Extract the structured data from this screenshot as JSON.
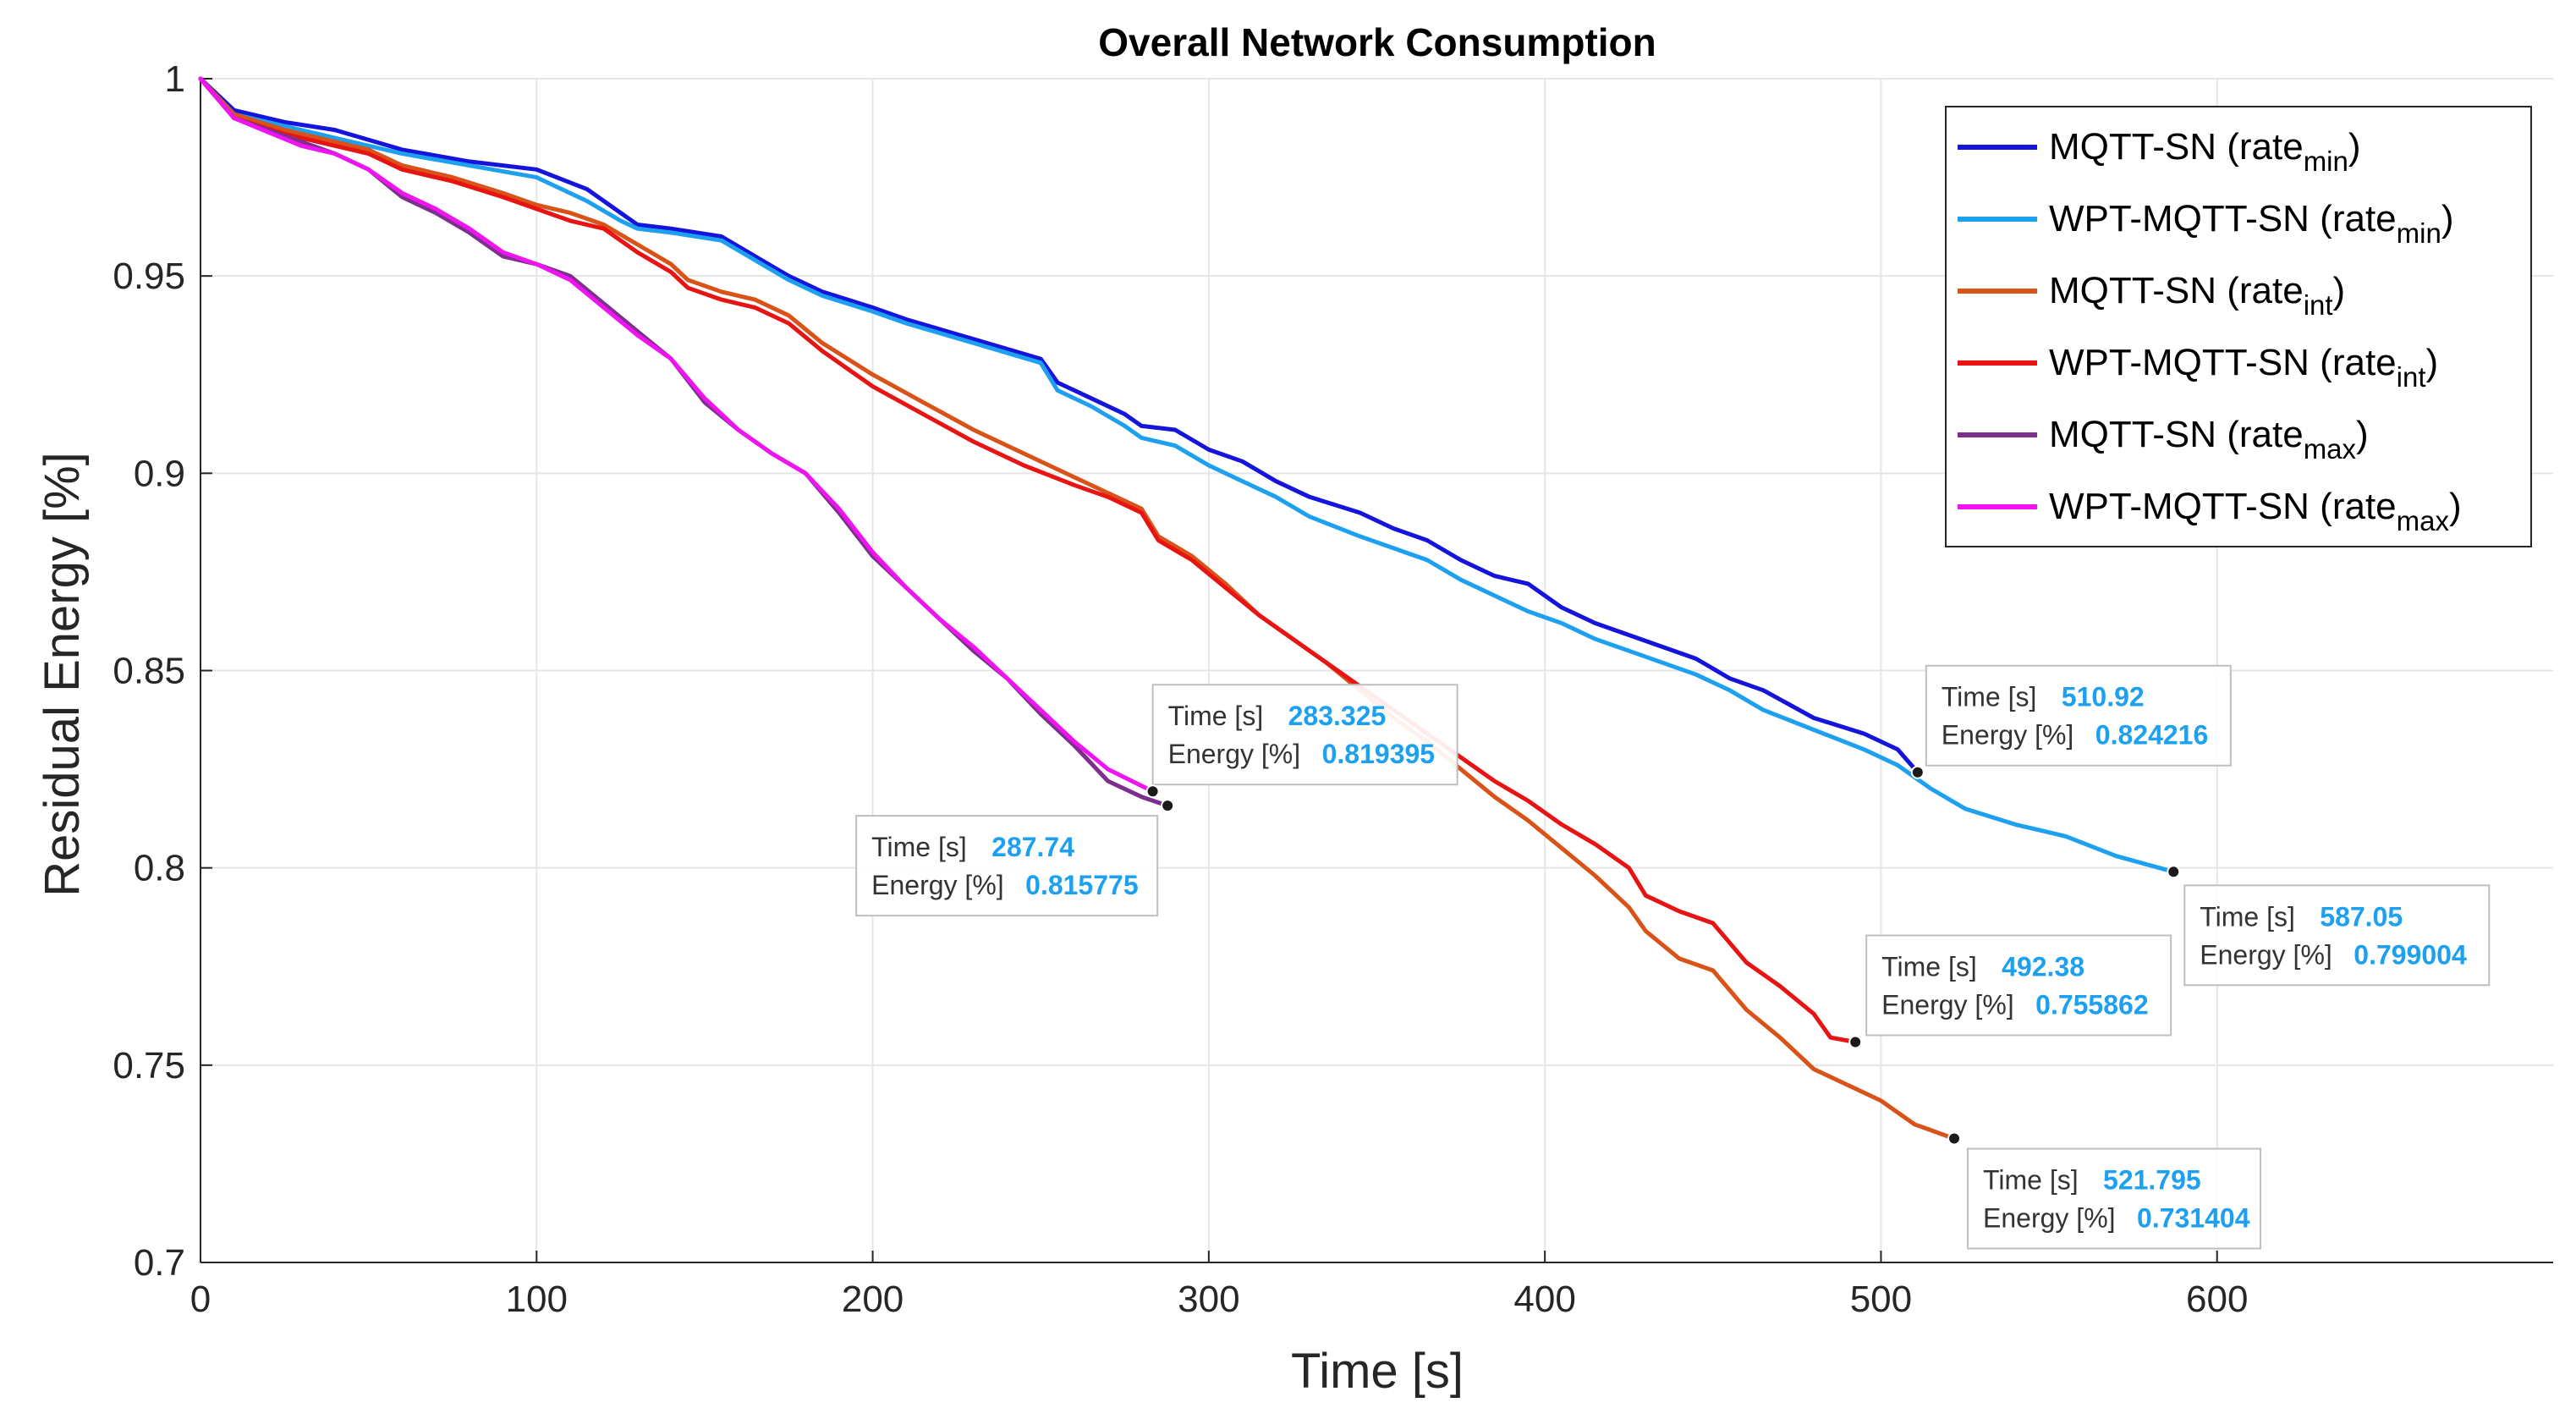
{
  "chart_data": {
    "type": "line",
    "title": "Overall Network Consumption",
    "xlabel": "Time [s]",
    "ylabel": "Residual Energy [%]",
    "xlim": [
      0,
      700
    ],
    "ylim": [
      0.7,
      1.0
    ],
    "grid": true,
    "legend_position": "top-right",
    "x_ticks": [
      "0",
      "100",
      "200",
      "300",
      "400",
      "500",
      "600"
    ],
    "y_ticks": [
      "0.7",
      "0.75",
      "0.8",
      "0.85",
      "0.9",
      "0.95",
      "1"
    ],
    "series": [
      {
        "name": "MQTT-SN (rate_min)",
        "legend_base": "MQTT-SN (rate",
        "legend_sub": "min",
        "legend_close": ")",
        "color": "#1414DC",
        "x": [
          0,
          10,
          25,
          40,
          60,
          80,
          100,
          115,
          125,
          130,
          140,
          155,
          165,
          175,
          185,
          200,
          210,
          230,
          250,
          255,
          265,
          275,
          280,
          290,
          300,
          310,
          320,
          330,
          345,
          355,
          365,
          375,
          385,
          395,
          405,
          415,
          425,
          435,
          445,
          455,
          465,
          480,
          495,
          505,
          510.92
        ],
        "y": [
          1.0,
          0.992,
          0.989,
          0.987,
          0.982,
          0.979,
          0.977,
          0.972,
          0.966,
          0.963,
          0.962,
          0.96,
          0.955,
          0.95,
          0.946,
          0.942,
          0.939,
          0.934,
          0.929,
          0.923,
          0.919,
          0.915,
          0.912,
          0.911,
          0.906,
          0.903,
          0.898,
          0.894,
          0.89,
          0.886,
          0.883,
          0.878,
          0.874,
          0.872,
          0.866,
          0.862,
          0.859,
          0.856,
          0.853,
          0.848,
          0.845,
          0.838,
          0.834,
          0.83,
          0.824216
        ]
      },
      {
        "name": "WPT-MQTT-SN (rate_min)",
        "legend_base": "WPT-MQTT-SN (rate",
        "legend_sub": "min",
        "legend_close": ")",
        "color": "#1EA0F0",
        "x": [
          0,
          10,
          25,
          40,
          60,
          80,
          100,
          115,
          125,
          130,
          140,
          155,
          165,
          175,
          185,
          200,
          210,
          230,
          250,
          255,
          265,
          275,
          280,
          290,
          300,
          310,
          320,
          330,
          345,
          355,
          365,
          375,
          385,
          395,
          405,
          415,
          425,
          435,
          445,
          455,
          465,
          480,
          495,
          505,
          515,
          525,
          540,
          555,
          570,
          587.05
        ],
        "y": [
          1.0,
          0.991,
          0.988,
          0.985,
          0.981,
          0.978,
          0.975,
          0.969,
          0.964,
          0.962,
          0.961,
          0.959,
          0.954,
          0.949,
          0.945,
          0.941,
          0.938,
          0.933,
          0.928,
          0.921,
          0.917,
          0.912,
          0.909,
          0.907,
          0.902,
          0.898,
          0.894,
          0.889,
          0.884,
          0.881,
          0.878,
          0.873,
          0.869,
          0.865,
          0.862,
          0.858,
          0.855,
          0.852,
          0.849,
          0.845,
          0.84,
          0.835,
          0.83,
          0.826,
          0.82,
          0.815,
          0.811,
          0.808,
          0.803,
          0.799004
        ]
      },
      {
        "name": "MQTT-SN (rate_int)",
        "legend_base": "MQTT-SN (rate",
        "legend_sub": "int",
        "legend_close": ")",
        "color": "#D95319",
        "x": [
          0,
          10,
          25,
          40,
          50,
          60,
          75,
          90,
          100,
          110,
          120,
          130,
          140,
          145,
          155,
          165,
          175,
          185,
          200,
          215,
          230,
          245,
          260,
          270,
          280,
          285,
          295,
          305,
          315,
          325,
          335,
          345,
          355,
          365,
          375,
          385,
          395,
          405,
          415,
          425,
          430,
          440,
          450,
          460,
          470,
          480,
          490,
          500,
          510,
          521.795
        ],
        "y": [
          1.0,
          0.991,
          0.987,
          0.984,
          0.982,
          0.978,
          0.975,
          0.971,
          0.968,
          0.966,
          0.963,
          0.958,
          0.953,
          0.949,
          0.946,
          0.944,
          0.94,
          0.933,
          0.925,
          0.918,
          0.911,
          0.905,
          0.899,
          0.895,
          0.891,
          0.884,
          0.879,
          0.872,
          0.864,
          0.858,
          0.852,
          0.845,
          0.838,
          0.832,
          0.825,
          0.818,
          0.812,
          0.805,
          0.798,
          0.79,
          0.784,
          0.777,
          0.774,
          0.764,
          0.757,
          0.749,
          0.745,
          0.741,
          0.735,
          0.731404
        ]
      },
      {
        "name": "WPT-MQTT-SN (rate_int)",
        "legend_base": "WPT-MQTT-SN (rate",
        "legend_sub": "int",
        "legend_close": ")",
        "color": "#E81414",
        "x": [
          0,
          10,
          25,
          40,
          50,
          60,
          75,
          90,
          100,
          110,
          120,
          130,
          140,
          145,
          155,
          165,
          175,
          185,
          200,
          215,
          230,
          245,
          260,
          270,
          280,
          285,
          295,
          305,
          315,
          325,
          335,
          345,
          355,
          365,
          375,
          385,
          395,
          405,
          415,
          425,
          430,
          440,
          450,
          460,
          470,
          480,
          485,
          492.38
        ],
        "y": [
          1.0,
          0.99,
          0.986,
          0.983,
          0.981,
          0.977,
          0.974,
          0.97,
          0.967,
          0.964,
          0.962,
          0.956,
          0.951,
          0.947,
          0.944,
          0.942,
          0.938,
          0.931,
          0.922,
          0.915,
          0.908,
          0.902,
          0.897,
          0.894,
          0.89,
          0.883,
          0.878,
          0.871,
          0.864,
          0.858,
          0.852,
          0.846,
          0.84,
          0.834,
          0.828,
          0.822,
          0.817,
          0.811,
          0.806,
          0.8,
          0.793,
          0.789,
          0.786,
          0.776,
          0.77,
          0.763,
          0.757,
          0.755862
        ]
      },
      {
        "name": "MQTT-SN (rate_max)",
        "legend_base": "MQTT-SN (rate",
        "legend_sub": "max",
        "legend_close": ")",
        "color": "#7E2F8E",
        "x": [
          0,
          10,
          30,
          40,
          50,
          60,
          70,
          80,
          90,
          100,
          110,
          120,
          130,
          140,
          150,
          160,
          170,
          180,
          190,
          200,
          210,
          220,
          230,
          240,
          250,
          260,
          270,
          280,
          287.74
        ],
        "y": [
          1.0,
          0.99,
          0.984,
          0.981,
          0.977,
          0.97,
          0.966,
          0.961,
          0.955,
          0.953,
          0.95,
          0.943,
          0.936,
          0.929,
          0.918,
          0.911,
          0.905,
          0.9,
          0.89,
          0.879,
          0.871,
          0.863,
          0.855,
          0.848,
          0.839,
          0.831,
          0.822,
          0.818,
          0.815775
        ]
      },
      {
        "name": "WPT-MQTT-SN (rate_max)",
        "legend_base": "WPT-MQTT-SN (rate",
        "legend_sub": "max",
        "legend_close": ")",
        "color": "#F014F0",
        "x": [
          0,
          10,
          30,
          40,
          50,
          60,
          70,
          80,
          90,
          100,
          110,
          120,
          130,
          140,
          150,
          160,
          170,
          180,
          190,
          200,
          210,
          220,
          230,
          240,
          250,
          260,
          270,
          283.325
        ],
        "y": [
          1.0,
          0.99,
          0.983,
          0.981,
          0.977,
          0.971,
          0.967,
          0.962,
          0.956,
          0.953,
          0.949,
          0.942,
          0.935,
          0.929,
          0.919,
          0.911,
          0.905,
          0.9,
          0.891,
          0.88,
          0.871,
          0.863,
          0.856,
          0.848,
          0.84,
          0.832,
          0.825,
          0.819395
        ]
      }
    ],
    "datatips": [
      {
        "series": "MQTT-SN (rate_min)",
        "time_label": "Time [s]",
        "energy_label": "Energy [%]",
        "time": "510.92",
        "energy": "0.824216",
        "x": 510.92,
        "y": 0.824216
      },
      {
        "series": "WPT-MQTT-SN (rate_min)",
        "time_label": "Time [s]",
        "energy_label": "Energy [%]",
        "time": "587.05",
        "energy": "0.799004",
        "x": 587.05,
        "y": 0.799004
      },
      {
        "series": "MQTT-SN (rate_int)",
        "time_label": "Time [s]",
        "energy_label": "Energy [%]",
        "time": "521.795",
        "energy": "0.731404",
        "x": 521.795,
        "y": 0.731404
      },
      {
        "series": "WPT-MQTT-SN (rate_int)",
        "time_label": "Time [s]",
        "energy_label": "Energy [%]",
        "time": "492.38",
        "energy": "0.755862",
        "x": 492.38,
        "y": 0.755862
      },
      {
        "series": "MQTT-SN (rate_max)",
        "time_label": "Time [s]",
        "energy_label": "Energy [%]",
        "time": "287.74",
        "energy": "0.815775",
        "x": 287.74,
        "y": 0.815775
      },
      {
        "series": "WPT-MQTT-SN (rate_max)",
        "time_label": "Time [s]",
        "energy_label": "Energy [%]",
        "time": "283.325",
        "energy": "0.819395",
        "x": 283.325,
        "y": 0.819395
      }
    ],
    "colors": {
      "background": "#FFFFFF",
      "grid": "#E6E6E6",
      "axis": "#262626",
      "tip_value": "#1EA0F0",
      "tip_border": "#BFBFBF",
      "tip_bg": "#FFFFFF"
    }
  }
}
